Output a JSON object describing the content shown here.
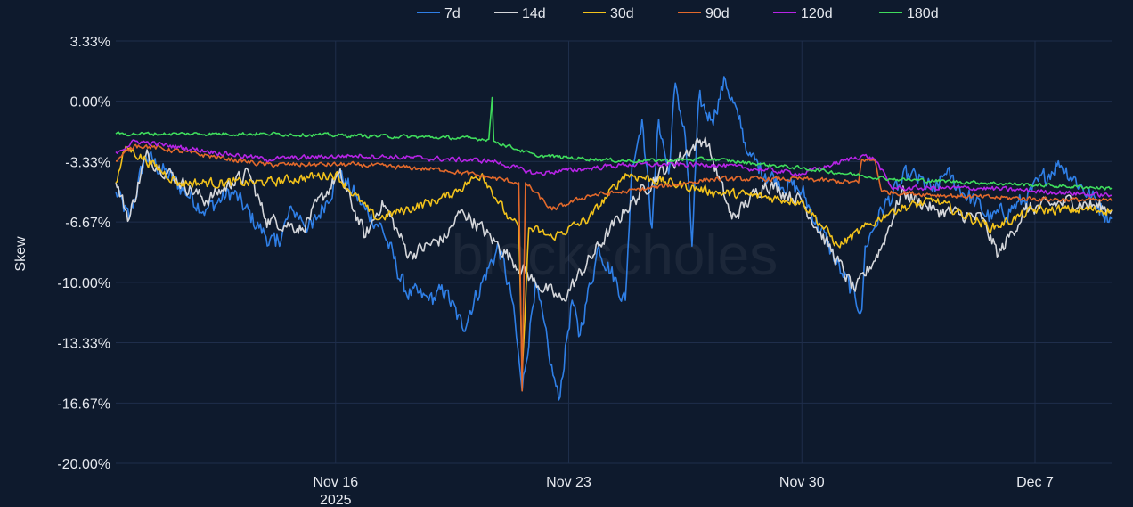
{
  "chart_data": {
    "type": "line",
    "title": "",
    "xlabel": "",
    "ylabel": "Skew",
    "watermark": "blockscholes",
    "x_unit": "days since 2025-11-16",
    "xlim": [
      -6.6,
      23.3
    ],
    "ylim": [
      -20.0,
      3.33
    ],
    "grid": true,
    "legend_position": "top-center",
    "y_ticks": [
      {
        "value": 3.33,
        "label": "3.33%"
      },
      {
        "value": 0,
        "label": "0.00%"
      },
      {
        "value": -3.33,
        "label": "-3.33%"
      },
      {
        "value": -6.67,
        "label": "-6.67%"
      },
      {
        "value": -10.0,
        "label": "-10.00%"
      },
      {
        "value": -13.33,
        "label": "-13.33%"
      },
      {
        "value": -16.67,
        "label": "-16.67%"
      },
      {
        "value": -20.0,
        "label": "-20.00%"
      }
    ],
    "x_ticks": [
      {
        "value": 0,
        "label": "Nov 16",
        "sublabel": "2025"
      },
      {
        "value": 7,
        "label": "Nov 23"
      },
      {
        "value": 14,
        "label": "Nov 30"
      },
      {
        "value": 21,
        "label": "Dec 7"
      }
    ],
    "series": [
      {
        "name": "7d",
        "color": "#2f7fe6",
        "noise": 0.8,
        "points": [
          [
            -6.6,
            -5
          ],
          [
            -6.2,
            -6.5
          ],
          [
            -5.7,
            -3
          ],
          [
            -3.9,
            -6
          ],
          [
            -3.1,
            -5
          ],
          [
            -2.3,
            -7
          ],
          [
            -1.8,
            -8
          ],
          [
            -1.3,
            -6
          ],
          [
            -0.7,
            -7
          ],
          [
            0.1,
            -4
          ],
          [
            0.9,
            -6
          ],
          [
            1.4,
            -7
          ],
          [
            2.1,
            -10.5
          ],
          [
            2.8,
            -11
          ],
          [
            3.3,
            -10.5
          ],
          [
            3.8,
            -12.5
          ],
          [
            4.4,
            -10
          ],
          [
            4.9,
            -8
          ],
          [
            5.3,
            -11
          ],
          [
            5.6,
            -16
          ],
          [
            6.0,
            -10
          ],
          [
            6.4,
            -14
          ],
          [
            6.7,
            -16.5
          ],
          [
            7.1,
            -11
          ],
          [
            7.3,
            -13
          ],
          [
            7.9,
            -8
          ],
          [
            8.7,
            -11
          ],
          [
            8.9,
            -3.5
          ],
          [
            9.2,
            -1
          ],
          [
            9.5,
            -7
          ],
          [
            9.7,
            -1
          ],
          [
            10.0,
            -4
          ],
          [
            10.2,
            1
          ],
          [
            10.5,
            -2
          ],
          [
            10.7,
            -8
          ],
          [
            10.9,
            0
          ],
          [
            11.3,
            -1
          ],
          [
            11.7,
            1.2
          ],
          [
            12.1,
            -1
          ],
          [
            12.4,
            -3
          ],
          [
            12.9,
            -4
          ],
          [
            14.0,
            -5
          ],
          [
            15.2,
            -9.5
          ],
          [
            15.8,
            -11.5
          ],
          [
            15.9,
            -8
          ],
          [
            16.4,
            -6
          ],
          [
            17.2,
            -4
          ],
          [
            18.0,
            -5
          ],
          [
            18.3,
            -4
          ],
          [
            19.7,
            -6.5
          ],
          [
            20.7,
            -5.5
          ],
          [
            21.7,
            -3.3
          ],
          [
            23.3,
            -6.5
          ]
        ]
      },
      {
        "name": "14d",
        "color": "#d4d6da",
        "noise": 0.6,
        "points": [
          [
            -6.6,
            -4.5
          ],
          [
            -6.2,
            -6.5
          ],
          [
            -5.7,
            -3
          ],
          [
            -3.9,
            -5.5
          ],
          [
            -3.1,
            -4.5
          ],
          [
            -2.6,
            -4
          ],
          [
            -2.1,
            -6.5
          ],
          [
            -1.0,
            -7
          ],
          [
            0.1,
            -4
          ],
          [
            0.9,
            -7.5
          ],
          [
            1.4,
            -5.5
          ],
          [
            2.2,
            -8.5
          ],
          [
            3.3,
            -7.5
          ],
          [
            3.8,
            -6
          ],
          [
            4.9,
            -8
          ],
          [
            6.0,
            -10
          ],
          [
            6.8,
            -11
          ],
          [
            7.9,
            -8
          ],
          [
            8.7,
            -6
          ],
          [
            9.7,
            -4
          ],
          [
            11.1,
            -2
          ],
          [
            11.9,
            -6.5
          ],
          [
            12.9,
            -4.5
          ],
          [
            14.0,
            -5.5
          ],
          [
            15.6,
            -10.5
          ],
          [
            16.4,
            -8
          ],
          [
            17.0,
            -5
          ],
          [
            18.0,
            -6
          ],
          [
            19.4,
            -6.5
          ],
          [
            19.9,
            -8.5
          ],
          [
            20.7,
            -6
          ],
          [
            22.1,
            -5.5
          ],
          [
            23.3,
            -6
          ]
        ]
      },
      {
        "name": "30d",
        "color": "#f2c21b",
        "noise": 0.4,
        "points": [
          [
            -6.6,
            -4.5
          ],
          [
            -6.3,
            -2.5
          ],
          [
            -4.7,
            -4.5
          ],
          [
            -2.1,
            -4.5
          ],
          [
            0.0,
            -4
          ],
          [
            1.2,
            -6.5
          ],
          [
            3.3,
            -5.3
          ],
          [
            4.4,
            -4
          ],
          [
            5.2,
            -6.5
          ],
          [
            5.5,
            -7
          ],
          [
            5.6,
            -15
          ],
          [
            5.8,
            -7
          ],
          [
            6.5,
            -7.5
          ],
          [
            7.6,
            -6.5
          ],
          [
            8.7,
            -4
          ],
          [
            11.3,
            -5
          ],
          [
            14.0,
            -5.5
          ],
          [
            15.1,
            -8
          ],
          [
            16.7,
            -6
          ],
          [
            18.0,
            -5.5
          ],
          [
            19.7,
            -7
          ],
          [
            21.0,
            -6
          ],
          [
            23.3,
            -6
          ]
        ]
      },
      {
        "name": "90d",
        "color": "#e2692b",
        "noise": 0.2,
        "points": [
          [
            -6.6,
            -3.3
          ],
          [
            -6.0,
            -2.4
          ],
          [
            -2.1,
            -3.5
          ],
          [
            0.6,
            -3.5
          ],
          [
            3.3,
            -3.8
          ],
          [
            4.6,
            -4.2
          ],
          [
            5.5,
            -4.5
          ],
          [
            5.6,
            -16
          ],
          [
            5.7,
            -4.5
          ],
          [
            6.5,
            -6
          ],
          [
            7.6,
            -5.2
          ],
          [
            8.7,
            -5
          ],
          [
            11.3,
            -4.3
          ],
          [
            14.0,
            -4.3
          ],
          [
            15.7,
            -4.5
          ],
          [
            15.8,
            -3.2
          ],
          [
            16.2,
            -3.3
          ],
          [
            16.4,
            -5
          ],
          [
            19.4,
            -5.3
          ],
          [
            23.3,
            -5.5
          ]
        ]
      },
      {
        "name": "120d",
        "color": "#b624e6",
        "noise": 0.2,
        "points": [
          [
            -6.6,
            -2.8
          ],
          [
            -6.0,
            -2.2
          ],
          [
            -2.1,
            -3.2
          ],
          [
            0.6,
            -3
          ],
          [
            3.3,
            -3.2
          ],
          [
            4.7,
            -3.3
          ],
          [
            6.0,
            -4
          ],
          [
            8.7,
            -3.5
          ],
          [
            11.3,
            -3.5
          ],
          [
            14.0,
            -4
          ],
          [
            15.8,
            -3
          ],
          [
            16.2,
            -3.2
          ],
          [
            16.7,
            -4.8
          ],
          [
            19.4,
            -4.8
          ],
          [
            23.3,
            -5.2
          ]
        ]
      },
      {
        "name": "180d",
        "color": "#3fdc5c",
        "noise": 0.15,
        "points": [
          [
            -6.6,
            -1.8
          ],
          [
            -4.7,
            -1.8
          ],
          [
            -2.1,
            -1.8
          ],
          [
            0.6,
            -1.9
          ],
          [
            3.3,
            -2
          ],
          [
            4.6,
            -2.1
          ],
          [
            4.7,
            0.2
          ],
          [
            4.75,
            -2.2
          ],
          [
            6.0,
            -3
          ],
          [
            8.7,
            -3.3
          ],
          [
            11.3,
            -3.2
          ],
          [
            14.0,
            -3.7
          ],
          [
            16.7,
            -4.3
          ],
          [
            19.4,
            -4.5
          ],
          [
            23.3,
            -4.8
          ]
        ]
      }
    ]
  }
}
